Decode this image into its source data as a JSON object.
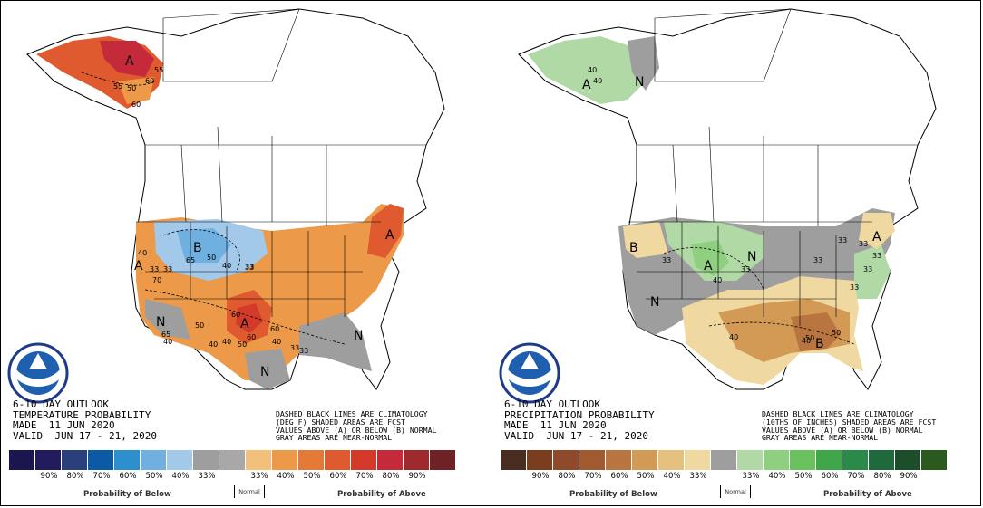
{
  "panels": [
    {
      "id": "temperature",
      "title_lines": [
        "6-10 DAY OUTLOOK",
        "TEMPERATURE PROBABILITY",
        "MADE  11 JUN 2020",
        "VALID  JUN 17 - 21, 2020"
      ],
      "note_lines": [
        "DASHED BLACK LINES ARE CLIMATOLOGY",
        "(DEG F) SHADED AREAS ARE FCST",
        "VALUES ABOVE (A) OR BELOW (B) NORMAL",
        "GRAY AREAS ARE NEAR-NORMAL"
      ],
      "legend_colors": [
        "#1b1550",
        "#221c5e",
        "#2b3f7c",
        "#0a5aa6",
        "#2e8fcf",
        "#6fb0e0",
        "#a3c9ea",
        "#9e9e9e",
        "#a8a8a8",
        "#f2c07a",
        "#ec9a4a",
        "#e57a36",
        "#df5a2e",
        "#d33a2a",
        "#c42a3a",
        "#9e2a2e",
        "#6e2225"
      ],
      "legend_ticks": [
        "90%",
        "80%",
        "70%",
        "60%",
        "50%",
        "40%",
        "33%",
        "33%",
        "40%",
        "50%",
        "60%",
        "70%",
        "80%",
        "90%"
      ],
      "caption_below": "Probability of Below",
      "caption_normal": "Normal",
      "caption_above": "Probability of Above",
      "map_labels": [
        "A",
        "B",
        "A",
        "A",
        "N",
        "N",
        "N",
        "A"
      ],
      "contour_values": [
        "55",
        "60",
        "50",
        "55",
        "60",
        "65",
        "50",
        "40",
        "33",
        "40",
        "33",
        "33",
        "40",
        "50",
        "60",
        "40",
        "50",
        "33",
        "60",
        "60",
        "40",
        "70",
        "65",
        "33",
        "40",
        "33"
      ]
    },
    {
      "id": "precipitation",
      "title_lines": [
        "6-10 DAY OUTLOOK",
        "PRECIPITATION PROBABILITY",
        "MADE  11 JUN 2020",
        "VALID  JUN 17 - 21, 2020"
      ],
      "note_lines": [
        "DASHED BLACK LINES ARE CLIMATOLOGY",
        "(10THS OF INCHES) SHADED AREAS ARE FCST",
        "VALUES ABOVE (A) OR BELOW (B) NORMAL",
        "GRAY AREAS ARE NEAR-NORMAL"
      ],
      "legend_colors": [
        "#4a2c20",
        "#7a3e1e",
        "#8e4a2a",
        "#a25a30",
        "#b87540",
        "#d29a55",
        "#e6c07e",
        "#f0d9a0",
        "#9e9e9e",
        "#b0d9a6",
        "#8fd080",
        "#6ac25e",
        "#3fa64a",
        "#2a8a4a",
        "#1e6a3c",
        "#1c4e2c",
        "#2a5a1e"
      ],
      "legend_ticks": [
        "90%",
        "80%",
        "70%",
        "60%",
        "50%",
        "40%",
        "33%",
        "33%",
        "40%",
        "50%",
        "60%",
        "70%",
        "80%",
        "90%"
      ],
      "caption_below": "Probability of Below",
      "caption_normal": "Normal",
      "caption_above": "Probability of Above",
      "map_labels": [
        "A",
        "N",
        "B",
        "A",
        "N",
        "N",
        "B",
        "A"
      ],
      "contour_values": [
        "40",
        "40",
        "33",
        "33",
        "40",
        "33",
        "33",
        "33",
        "40",
        "40",
        "50",
        "50",
        "33",
        "33",
        "33"
      ]
    }
  ]
}
